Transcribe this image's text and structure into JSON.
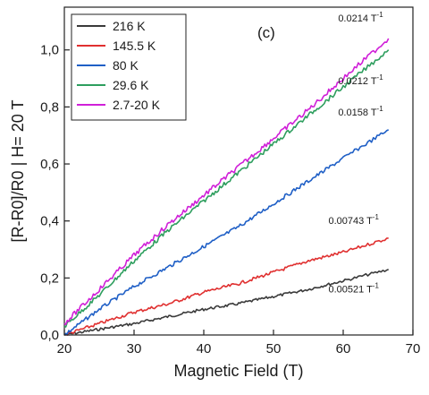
{
  "chart_data": {
    "type": "line",
    "panel_label": "(c)",
    "xlabel": "Magnetic Field (T)",
    "ylabel": "[R-R0]/R0 | H= 20 T",
    "xlim": [
      20,
      70
    ],
    "ylim": [
      0,
      1.15
    ],
    "x_ticks": [
      20,
      30,
      40,
      50,
      60,
      70
    ],
    "x_tick_labels": [
      "20",
      "30",
      "40",
      "50",
      "60",
      "70"
    ],
    "y_ticks": [
      0,
      0.2,
      0.4,
      0.6,
      0.8,
      1.0
    ],
    "y_tick_labels": [
      "0,0",
      "0,2",
      "0,4",
      "0,6",
      "0,8",
      "1,0"
    ],
    "legend_position": "top-left",
    "series": [
      {
        "name": "216 K",
        "color": "#3a3a3a",
        "x": [
          20,
          25,
          30,
          35,
          40,
          45,
          50,
          55,
          60,
          66.5
        ],
        "y": [
          0.0,
          0.02,
          0.04,
          0.065,
          0.09,
          0.11,
          0.135,
          0.16,
          0.19,
          0.23
        ]
      },
      {
        "name": "145.5 K",
        "color": "#e03030",
        "x": [
          20,
          25,
          30,
          35,
          40,
          45,
          50,
          55,
          60,
          66.5
        ],
        "y": [
          0.0,
          0.04,
          0.08,
          0.11,
          0.15,
          0.18,
          0.22,
          0.26,
          0.29,
          0.34
        ]
      },
      {
        "name": "80 K",
        "color": "#1f5fc6",
        "x": [
          20,
          25,
          30,
          35,
          40,
          45,
          50,
          55,
          60,
          66.5
        ],
        "y": [
          0.0,
          0.09,
          0.17,
          0.24,
          0.31,
          0.38,
          0.46,
          0.54,
          0.62,
          0.72
        ]
      },
      {
        "name": "29.6 K",
        "color": "#2e9e5e",
        "x": [
          20,
          25,
          30,
          35,
          40,
          45,
          50,
          55,
          60,
          66.5
        ],
        "y": [
          0.03,
          0.14,
          0.26,
          0.37,
          0.47,
          0.57,
          0.67,
          0.77,
          0.87,
          1.0
        ]
      },
      {
        "name": "2.7-20 K",
        "color": "#d020d8",
        "x": [
          20,
          25,
          30,
          35,
          40,
          45,
          50,
          55,
          60,
          66.5
        ],
        "y": [
          0.04,
          0.16,
          0.28,
          0.39,
          0.49,
          0.59,
          0.69,
          0.79,
          0.9,
          1.04
        ]
      }
    ],
    "annotations": [
      {
        "text": "0.0214 T",
        "superscript": "-1",
        "x": 62.5,
        "y": 1.1
      },
      {
        "text": "0.0212 T",
        "superscript": "-1",
        "x": 62.5,
        "y": 0.88
      },
      {
        "text": "0.0158 T",
        "superscript": "-1",
        "x": 62.5,
        "y": 0.77
      },
      {
        "text": "0.00743 T",
        "superscript": "-1",
        "x": 61.5,
        "y": 0.39
      },
      {
        "text": "0.00521 T",
        "superscript": "-1",
        "x": 61.5,
        "y": 0.15
      }
    ]
  }
}
